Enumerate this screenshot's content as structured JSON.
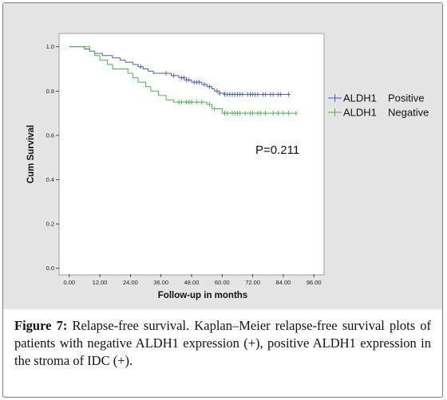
{
  "chart_data": {
    "type": "line",
    "title": "",
    "xlabel": "Follow-up in months",
    "ylabel": "Cum Survival",
    "xlim": [
      -4,
      100
    ],
    "ylim": [
      -0.03,
      1.06
    ],
    "x_ticks": [
      0,
      12,
      24,
      36,
      48,
      60,
      72,
      84,
      96
    ],
    "x_tick_labels": [
      "0.00",
      "12.00",
      "24.00",
      "36.00",
      "48.00",
      "60.00",
      "72.00",
      "84.00",
      "96.00"
    ],
    "y_ticks": [
      0,
      0.2,
      0.4,
      0.6,
      0.8,
      1.0
    ],
    "y_tick_labels": [
      "0.0",
      "0.2",
      "0.4",
      "0.6",
      "0.8",
      "1.0"
    ],
    "grid": false,
    "legend_position": "right",
    "annotation": "P=0.211",
    "series": [
      {
        "name": "ALDH1",
        "legend_suffix": "Positive",
        "color": "#4a5fb0",
        "steps": [
          [
            0,
            1.0
          ],
          [
            6,
            0.99
          ],
          [
            8,
            0.98
          ],
          [
            10,
            0.97
          ],
          [
            13,
            0.96
          ],
          [
            17,
            0.95
          ],
          [
            20,
            0.94
          ],
          [
            22,
            0.93
          ],
          [
            25,
            0.92
          ],
          [
            27,
            0.91
          ],
          [
            29,
            0.9
          ],
          [
            31,
            0.89
          ],
          [
            33,
            0.88
          ],
          [
            40,
            0.87
          ],
          [
            43,
            0.86
          ],
          [
            46,
            0.85
          ],
          [
            48,
            0.84
          ],
          [
            52,
            0.83
          ],
          [
            54,
            0.82
          ],
          [
            56,
            0.81
          ],
          [
            57,
            0.8
          ],
          [
            59,
            0.79
          ],
          [
            61,
            0.785
          ],
          [
            86,
            0.785
          ]
        ],
        "censored": [
          28,
          38,
          41,
          44,
          45,
          46,
          47,
          49,
          50,
          51,
          53,
          55,
          58,
          59,
          61,
          62,
          63,
          64,
          65,
          66,
          67,
          68,
          70,
          71,
          72,
          73,
          74,
          76,
          77,
          79,
          80,
          82,
          83,
          86
        ]
      },
      {
        "name": "ALDH1",
        "legend_suffix": "Negative",
        "color": "#4cb54c",
        "steps": [
          [
            0,
            1.0
          ],
          [
            8,
            0.98
          ],
          [
            10,
            0.96
          ],
          [
            12,
            0.94
          ],
          [
            15,
            0.92
          ],
          [
            17,
            0.9
          ],
          [
            23,
            0.88
          ],
          [
            25,
            0.86
          ],
          [
            27,
            0.84
          ],
          [
            30,
            0.82
          ],
          [
            32,
            0.8
          ],
          [
            35,
            0.78
          ],
          [
            38,
            0.76
          ],
          [
            41,
            0.75
          ],
          [
            54,
            0.74
          ],
          [
            56,
            0.72
          ],
          [
            60,
            0.7
          ],
          [
            89,
            0.7
          ]
        ],
        "censored": [
          43,
          44,
          46,
          47,
          48,
          50,
          52,
          55,
          57,
          61,
          62,
          64,
          65,
          66,
          67,
          69,
          71,
          72,
          74,
          75,
          77,
          80,
          82,
          84,
          86,
          89
        ]
      }
    ]
  },
  "caption": {
    "label": "Figure 7:",
    "text": " Relapse-free survival. Kaplan–Meier relapse-free survival plots of patients with negative ALDH1 expression (+), positive ALDH1 expression in the stroma of IDC (+)."
  }
}
